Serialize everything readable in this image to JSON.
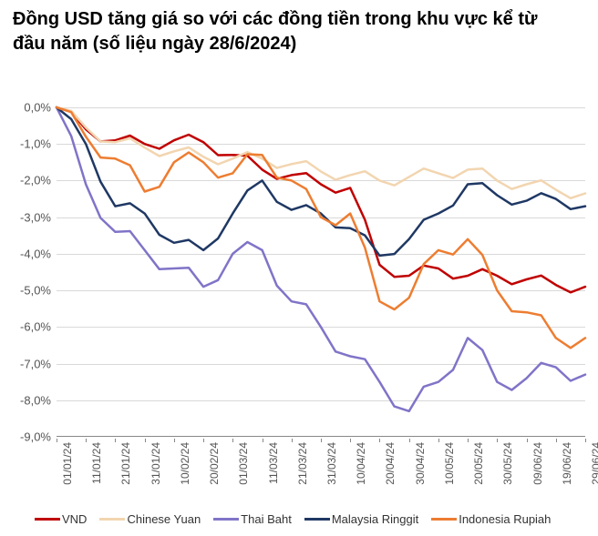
{
  "title": "Đồng USD tăng giá so với các đồng tiền trong khu vực kể từ đầu năm (số liệu ngày 28/6/2024)",
  "chart": {
    "type": "line",
    "background_color": "#ffffff",
    "grid_color": "#d9d9d9",
    "title_fontsize": 20,
    "label_fontsize": 13,
    "yaxis": {
      "min": -9.0,
      "max": 0.0,
      "step": 1.0,
      "format_suffix": "%",
      "format_decimal": ",",
      "labels": [
        "0,0%",
        "-1,0%",
        "-2,0%",
        "-3,0%",
        "-4,0%",
        "-5,0%",
        "-6,0%",
        "-7,0%",
        "-8,0%",
        "-9,0%"
      ]
    },
    "xaxis": {
      "labels": [
        "01/01/24",
        "11/01/24",
        "21/01/24",
        "31/01/24",
        "10/02/24",
        "20/02/24",
        "01/03/24",
        "11/03/24",
        "21/03/24",
        "31/03/24",
        "10/04/24",
        "20/04/24",
        "30/04/24",
        "10/05/24",
        "20/05/24",
        "30/05/24",
        "09/06/24",
        "19/06/24",
        "29/06/24"
      ],
      "positions": [
        0,
        1,
        2,
        3,
        4,
        5,
        6,
        7,
        8,
        9,
        10,
        11,
        12,
        13,
        14,
        15,
        16,
        17,
        18
      ],
      "n": 19,
      "rotation_deg": -90
    },
    "series": [
      {
        "name": "VND",
        "color": "#c00000",
        "line_width": 2.5,
        "values": [
          0.0,
          -0.6,
          -0.9,
          -1.0,
          -0.9,
          -0.95,
          -1.3,
          -1.7,
          -1.85,
          -2.1,
          -2.2,
          -4.3,
          -4.6,
          -4.4,
          -4.6,
          -4.6,
          -4.7,
          -4.85,
          -4.9
        ]
      },
      {
        "name": "Chinese Yuan",
        "color": "#f2d5b0",
        "line_width": 2.5,
        "values": [
          0.0,
          -0.55,
          -0.95,
          -1.1,
          -1.2,
          -1.35,
          -1.4,
          -1.4,
          -1.55,
          -1.75,
          -1.85,
          -2.0,
          -1.9,
          -1.8,
          -1.7,
          -2.0,
          -2.1,
          -2.25,
          -2.35
        ]
      },
      {
        "name": "Thai Baht",
        "color": "#8074c8",
        "line_width": 2.5,
        "values": [
          0.0,
          -2.1,
          -3.4,
          -3.9,
          -4.4,
          -4.9,
          -4.0,
          -3.9,
          -5.3,
          -6.0,
          -6.8,
          -7.5,
          -8.3,
          -7.5,
          -6.3,
          -7.5,
          -7.4,
          -7.1,
          -7.3
        ]
      },
      {
        "name": "Malaysia Ringgit",
        "color": "#1f3864",
        "line_width": 2.5,
        "values": [
          0.0,
          -1.0,
          -2.7,
          -2.9,
          -3.7,
          -3.9,
          -2.9,
          -2.0,
          -2.8,
          -2.9,
          -3.3,
          -4.05,
          -3.6,
          -2.9,
          -2.1,
          -2.4,
          -2.55,
          -2.5,
          -2.7
        ]
      },
      {
        "name": "Indonesia Rupiah",
        "color": "#ed7d31",
        "line_width": 2.5,
        "values": [
          0.0,
          -0.8,
          -1.4,
          -2.3,
          -1.5,
          -1.5,
          -1.8,
          -1.3,
          -2.0,
          -3.0,
          -2.9,
          -5.3,
          -5.2,
          -3.9,
          -3.6,
          -5.0,
          -5.6,
          -6.3,
          -6.3
        ]
      }
    ],
    "legend": {
      "items": [
        "VND",
        "Chinese Yuan",
        "Thai Baht",
        "Malaysia Ringgit",
        "Indonesia Rupiah"
      ],
      "position": "bottom",
      "swatch_width": 28,
      "swatch_height": 3
    }
  }
}
